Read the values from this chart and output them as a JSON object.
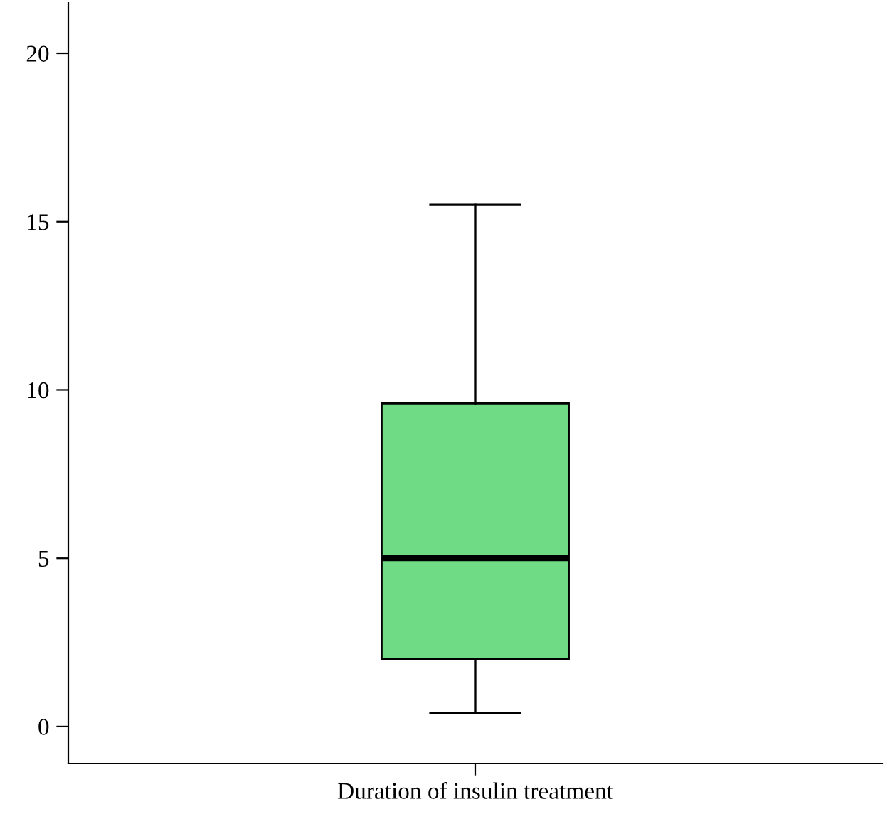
{
  "chart_data": {
    "type": "box",
    "categories": [
      "Duration of insulin treatment"
    ],
    "boxes": [
      {
        "low": 0.4,
        "q1": 2.0,
        "median": 5.0,
        "q3": 9.6,
        "high": 15.5
      }
    ],
    "color": "#6fdc85",
    "ylim": [
      -1.1,
      21.5
    ],
    "yticks": [
      0,
      5,
      10,
      15,
      20
    ],
    "grid": false
  }
}
